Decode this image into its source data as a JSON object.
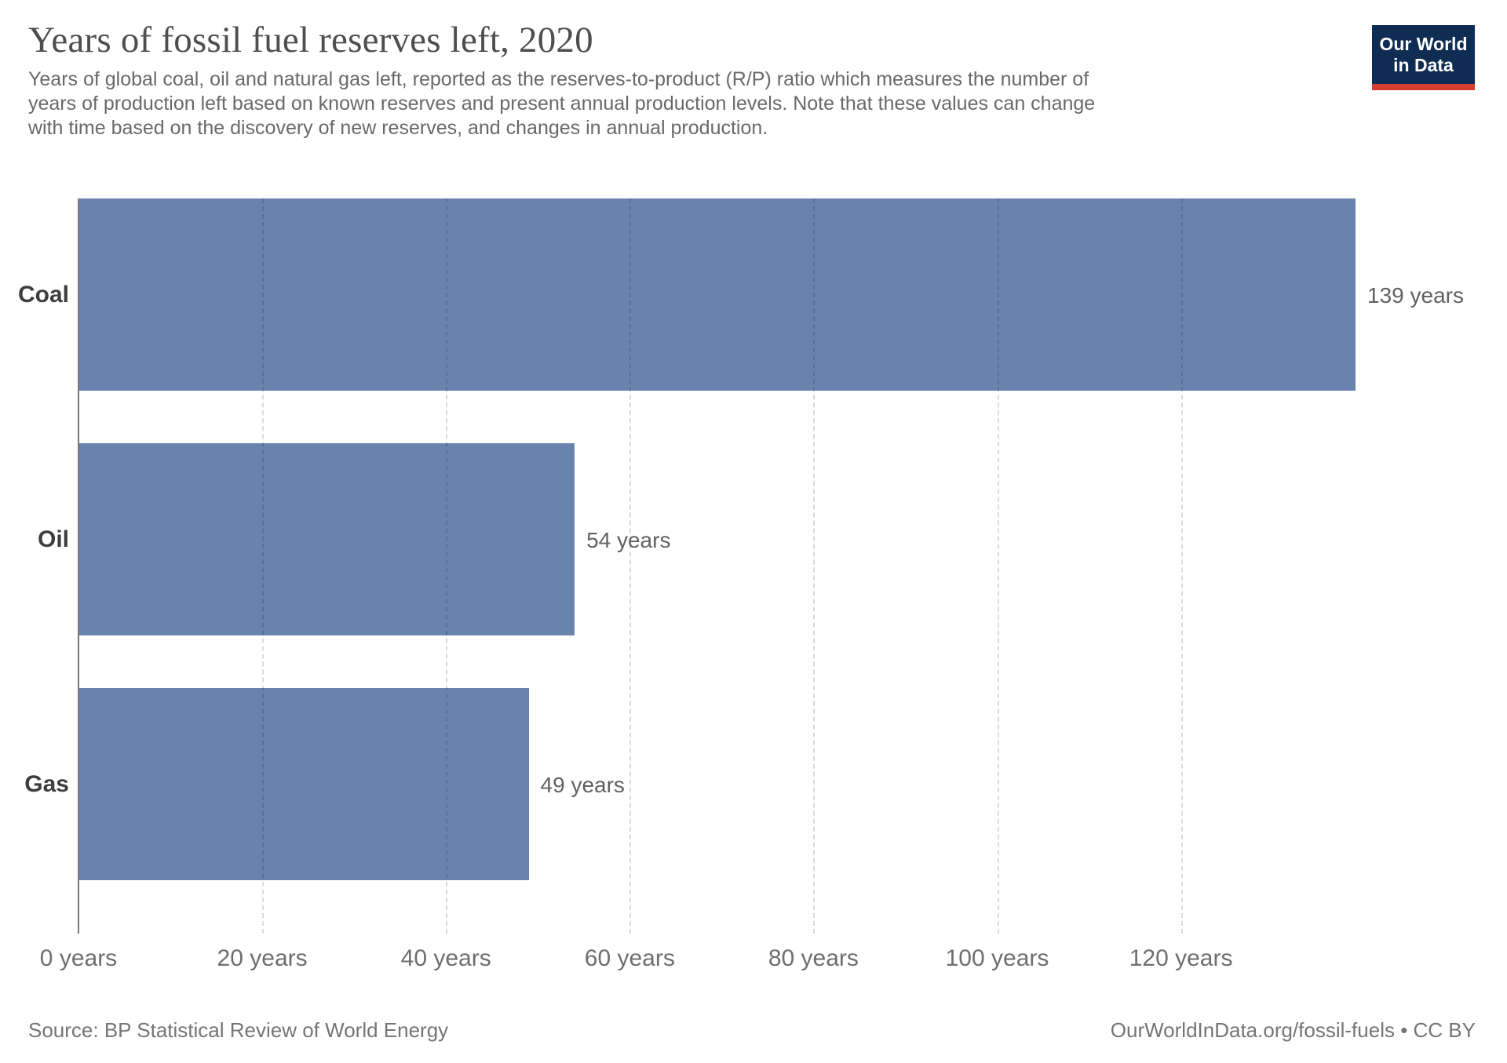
{
  "header": {
    "title": "Years of fossil fuel reserves left, 2020",
    "subtitle": "Years of global coal, oil and natural gas left, reported as the reserves-to-product (R/P) ratio which measures the number of years of production left based on known reserves and present annual production levels. Note that these values can change with time based on the discovery of new reserves, and changes in annual production."
  },
  "logo": {
    "line1": "Our World",
    "line2": "in Data",
    "bg_color": "#0f2d52",
    "accent_color": "#d63d31"
  },
  "chart_data": {
    "type": "bar",
    "orientation": "horizontal",
    "title": "Years of fossil fuel reserves left, 2020",
    "xlabel": "",
    "ylabel": "",
    "categories": [
      "Coal",
      "Oil",
      "Gas"
    ],
    "values": [
      139,
      54,
      49
    ],
    "value_labels": [
      "139 years",
      "54 years",
      "49 years"
    ],
    "unit": "years",
    "xlim": [
      0,
      139
    ],
    "xticks": [
      0,
      20,
      40,
      60,
      80,
      100,
      120
    ],
    "xtick_labels": [
      "0 years",
      "20 years",
      "40 years",
      "60 years",
      "80 years",
      "100 years",
      "120 years"
    ],
    "grid": "vertical-dashed",
    "legend": "none",
    "bar_color": "#6883ae",
    "gridline_color": "#d9d9d9",
    "axis_line_color": "#787878"
  },
  "footer": {
    "source": "Source: BP Statistical Review of World Energy",
    "credit": "OurWorldInData.org/fossil-fuels • CC BY"
  }
}
